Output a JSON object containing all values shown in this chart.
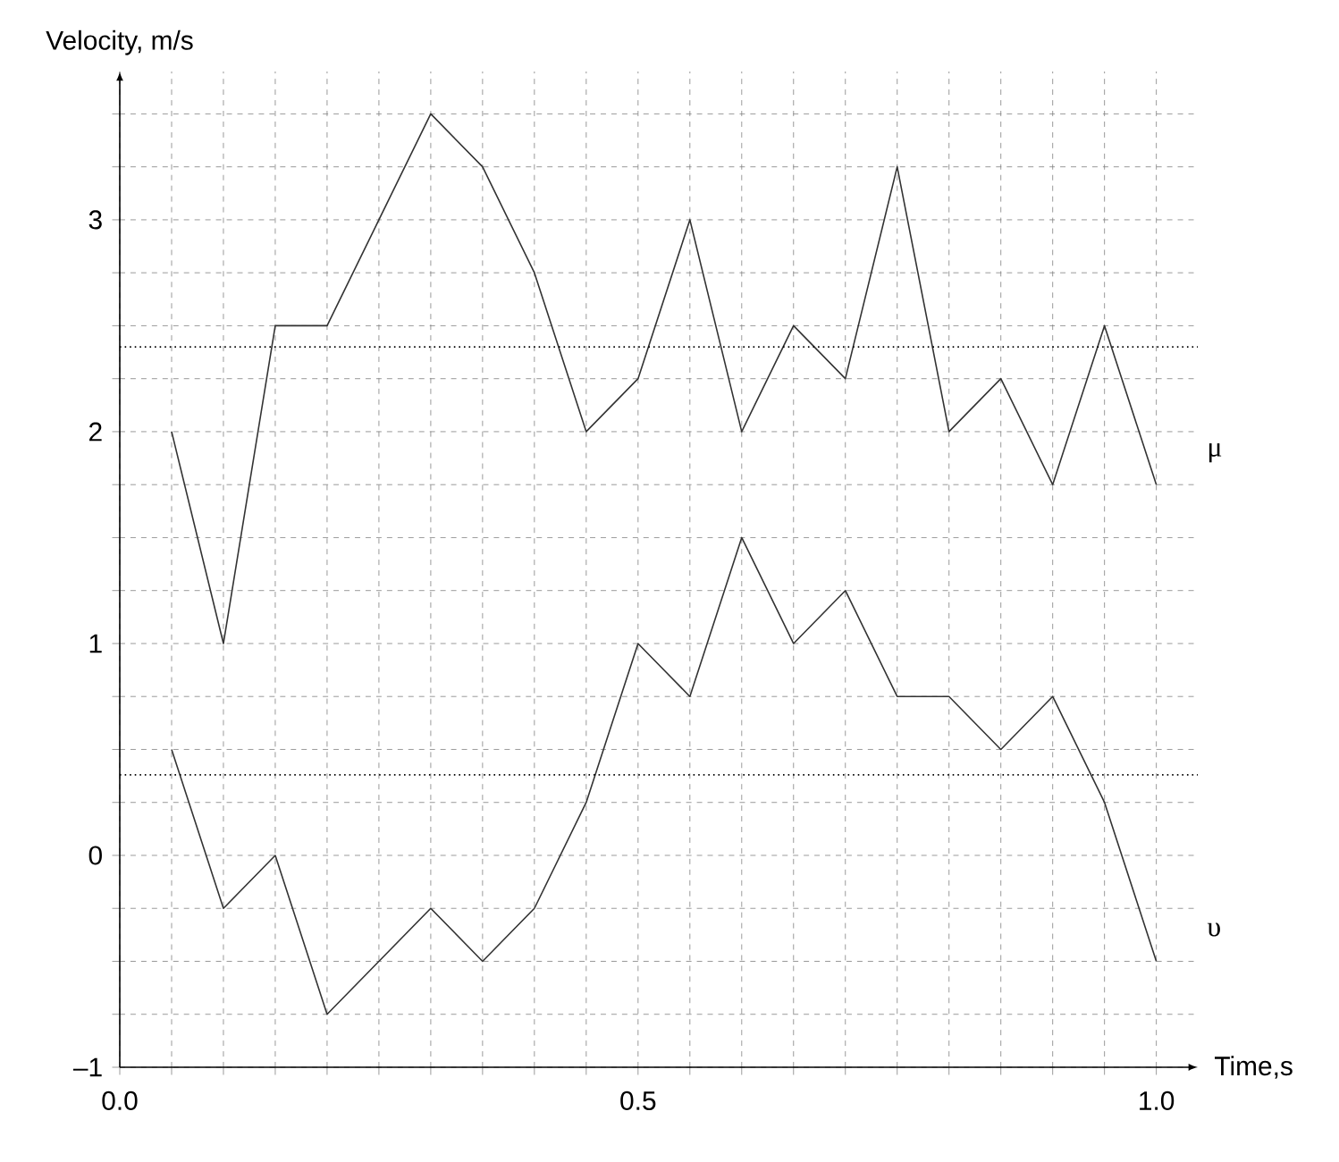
{
  "chart_data": {
    "type": "line",
    "xlabel": "Time,s",
    "ylabel": "Velocity, m/s",
    "x": [
      0.05,
      0.1,
      0.15,
      0.2,
      0.25,
      0.3,
      0.35,
      0.4,
      0.45,
      0.5,
      0.55,
      0.6,
      0.65,
      0.7,
      0.75,
      0.8,
      0.85,
      0.9,
      0.95,
      1.0
    ],
    "series": [
      {
        "name": "μ",
        "color": "#333333",
        "values": [
          2.0,
          1.0,
          2.5,
          2.5,
          3.0,
          3.5,
          3.25,
          2.75,
          2.0,
          2.25,
          3.0,
          2.0,
          2.5,
          2.25,
          3.25,
          2.0,
          2.25,
          1.75,
          2.5,
          1.75
        ]
      },
      {
        "name": "υ",
        "color": "#333333",
        "values": [
          0.5,
          -0.25,
          0.0,
          -0.75,
          -0.5,
          -0.25,
          -0.5,
          -0.25,
          0.25,
          1.0,
          0.75,
          1.5,
          1.0,
          1.25,
          0.75,
          0.75,
          0.5,
          0.75,
          0.25,
          -0.5
        ]
      }
    ],
    "xlim": [
      0,
      1.04
    ],
    "ylim": [
      -1,
      3.7
    ],
    "xticks": [
      {
        "value": 0,
        "label": "0.0"
      },
      {
        "value": 0.05,
        "label": null
      },
      {
        "value": 0.1,
        "label": null
      },
      {
        "value": 0.15,
        "label": null
      },
      {
        "value": 0.2,
        "label": null
      },
      {
        "value": 0.25,
        "label": null
      },
      {
        "value": 0.3,
        "label": null
      },
      {
        "value": 0.35,
        "label": null
      },
      {
        "value": 0.4,
        "label": null
      },
      {
        "value": 0.45,
        "label": null
      },
      0.5,
      {
        "value": 0.55,
        "label": null
      },
      {
        "value": 0.6,
        "label": null
      },
      {
        "value": 0.65,
        "label": null
      },
      {
        "value": 0.7,
        "label": null
      },
      {
        "value": 0.75,
        "label": null
      },
      {
        "value": 0.8,
        "label": null
      },
      {
        "value": 0.85,
        "label": null
      },
      {
        "value": 0.9,
        "label": null
      },
      {
        "value": 0.95,
        "label": null
      },
      {
        "value": 1,
        "label": "1.0"
      }
    ],
    "yticks": [
      {
        "value": -1,
        "label": "–1"
      },
      {
        "value": -0.75,
        "label": null
      },
      {
        "value": -0.5,
        "label": null
      },
      {
        "value": -0.25,
        "label": null
      },
      0,
      {
        "value": 0.25,
        "label": null
      },
      {
        "value": 0.5,
        "label": null
      },
      {
        "value": 0.75,
        "label": null
      },
      1,
      {
        "value": 1.25,
        "label": null
      },
      {
        "value": 1.5,
        "label": null
      },
      {
        "value": 1.75,
        "label": null
      },
      2,
      {
        "value": 2.25,
        "label": null
      },
      {
        "value": 2.5,
        "label": null
      },
      {
        "value": 2.75,
        "label": null
      },
      3,
      {
        "value": 3.25,
        "label": null
      },
      {
        "value": 3.5,
        "label": null
      }
    ],
    "ref_lines": [
      {
        "axis": "y",
        "value": 2.4,
        "line_style": "dotted"
      },
      {
        "axis": "y",
        "value": 0.38,
        "line_style": "dotted"
      }
    ],
    "grid": true,
    "marker": "none",
    "line_style": "solid"
  }
}
